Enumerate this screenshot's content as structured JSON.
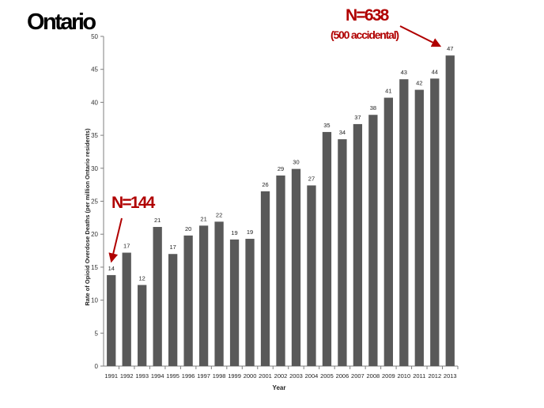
{
  "header": {
    "title": "Ontario"
  },
  "annotations": {
    "right_main": "N=638",
    "right_sub": "(500 accidental)",
    "left_main": "N=144",
    "arrow_color": "#b00000"
  },
  "chart_data": {
    "type": "bar",
    "title": "",
    "xlabel": "Year",
    "ylabel": "Rate of Opioid Overdose Deaths (per million Ontario residents)",
    "ylim": [
      0,
      50
    ],
    "yticks": [
      0,
      5,
      10,
      15,
      20,
      25,
      30,
      35,
      40,
      45,
      50
    ],
    "grid": false,
    "bar_color": "#595959",
    "categories": [
      "1991",
      "1992",
      "1993",
      "1994",
      "1995",
      "1996",
      "1997",
      "1998",
      "1999",
      "2000",
      "2001",
      "2002",
      "2003",
      "2004",
      "2005",
      "2006",
      "2007",
      "2008",
      "2009",
      "2010",
      "2011",
      "2012",
      "2013"
    ],
    "values": [
      13.8,
      17.2,
      12.3,
      21.1,
      17.0,
      19.8,
      21.3,
      21.9,
      19.2,
      19.3,
      26.5,
      28.9,
      29.9,
      27.4,
      35.5,
      34.4,
      36.7,
      38.1,
      40.7,
      43.5,
      41.9,
      43.6,
      47.1
    ],
    "data_labels": [
      "14",
      "17",
      "12",
      "21",
      "17",
      "20",
      "21",
      "22",
      "19",
      "19",
      "26",
      "29",
      "30",
      "27",
      "35",
      "34",
      "37",
      "38",
      "41",
      "43",
      "42",
      "44",
      "47"
    ]
  }
}
